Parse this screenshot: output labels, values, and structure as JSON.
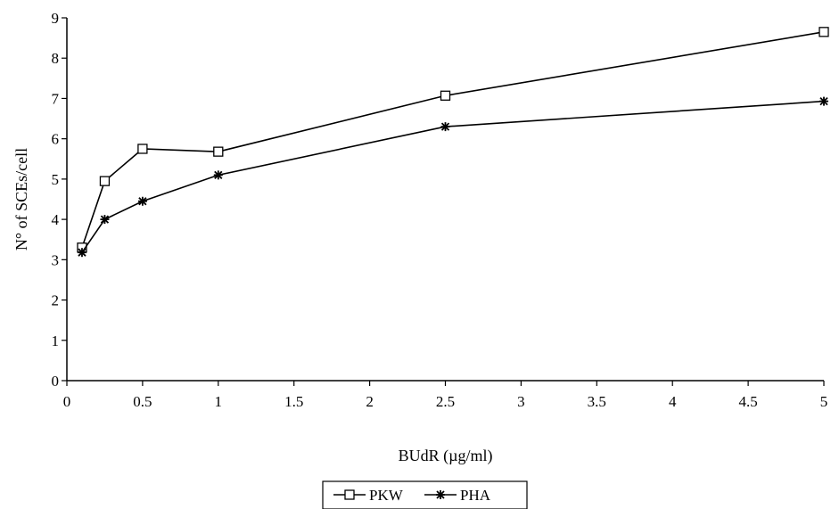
{
  "chart_data": {
    "type": "line",
    "title": "",
    "xlabel": "BUdR (µg/ml)",
    "ylabel": "N° of SCEs/cell",
    "xlim": [
      0,
      5
    ],
    "ylim": [
      0,
      9
    ],
    "grid": false,
    "legend_position": "bottom-center",
    "x_ticks": [
      0,
      0.5,
      1,
      1.5,
      2,
      2.5,
      3,
      3.5,
      4,
      4.5,
      5
    ],
    "x_tick_labels": [
      "0",
      "0.5",
      "1",
      "1.5",
      "2",
      "2.5",
      "3",
      "3.5",
      "4",
      "4.5",
      "5"
    ],
    "y_ticks": [
      0,
      1,
      2,
      3,
      4,
      5,
      6,
      7,
      8,
      9
    ],
    "y_tick_labels": [
      "0",
      "1",
      "2",
      "3",
      "4",
      "5",
      "6",
      "7",
      "8",
      "9"
    ],
    "x": [
      0.1,
      0.25,
      0.5,
      1,
      2.5,
      5
    ],
    "series": [
      {
        "name": "PKW",
        "marker": "square",
        "color": "#000000",
        "values": [
          3.3,
          4.95,
          5.75,
          5.68,
          7.07,
          8.65
        ]
      },
      {
        "name": "PHA",
        "marker": "star",
        "color": "#000000",
        "values": [
          3.18,
          4.0,
          4.45,
          5.1,
          6.3,
          6.93
        ]
      }
    ]
  }
}
